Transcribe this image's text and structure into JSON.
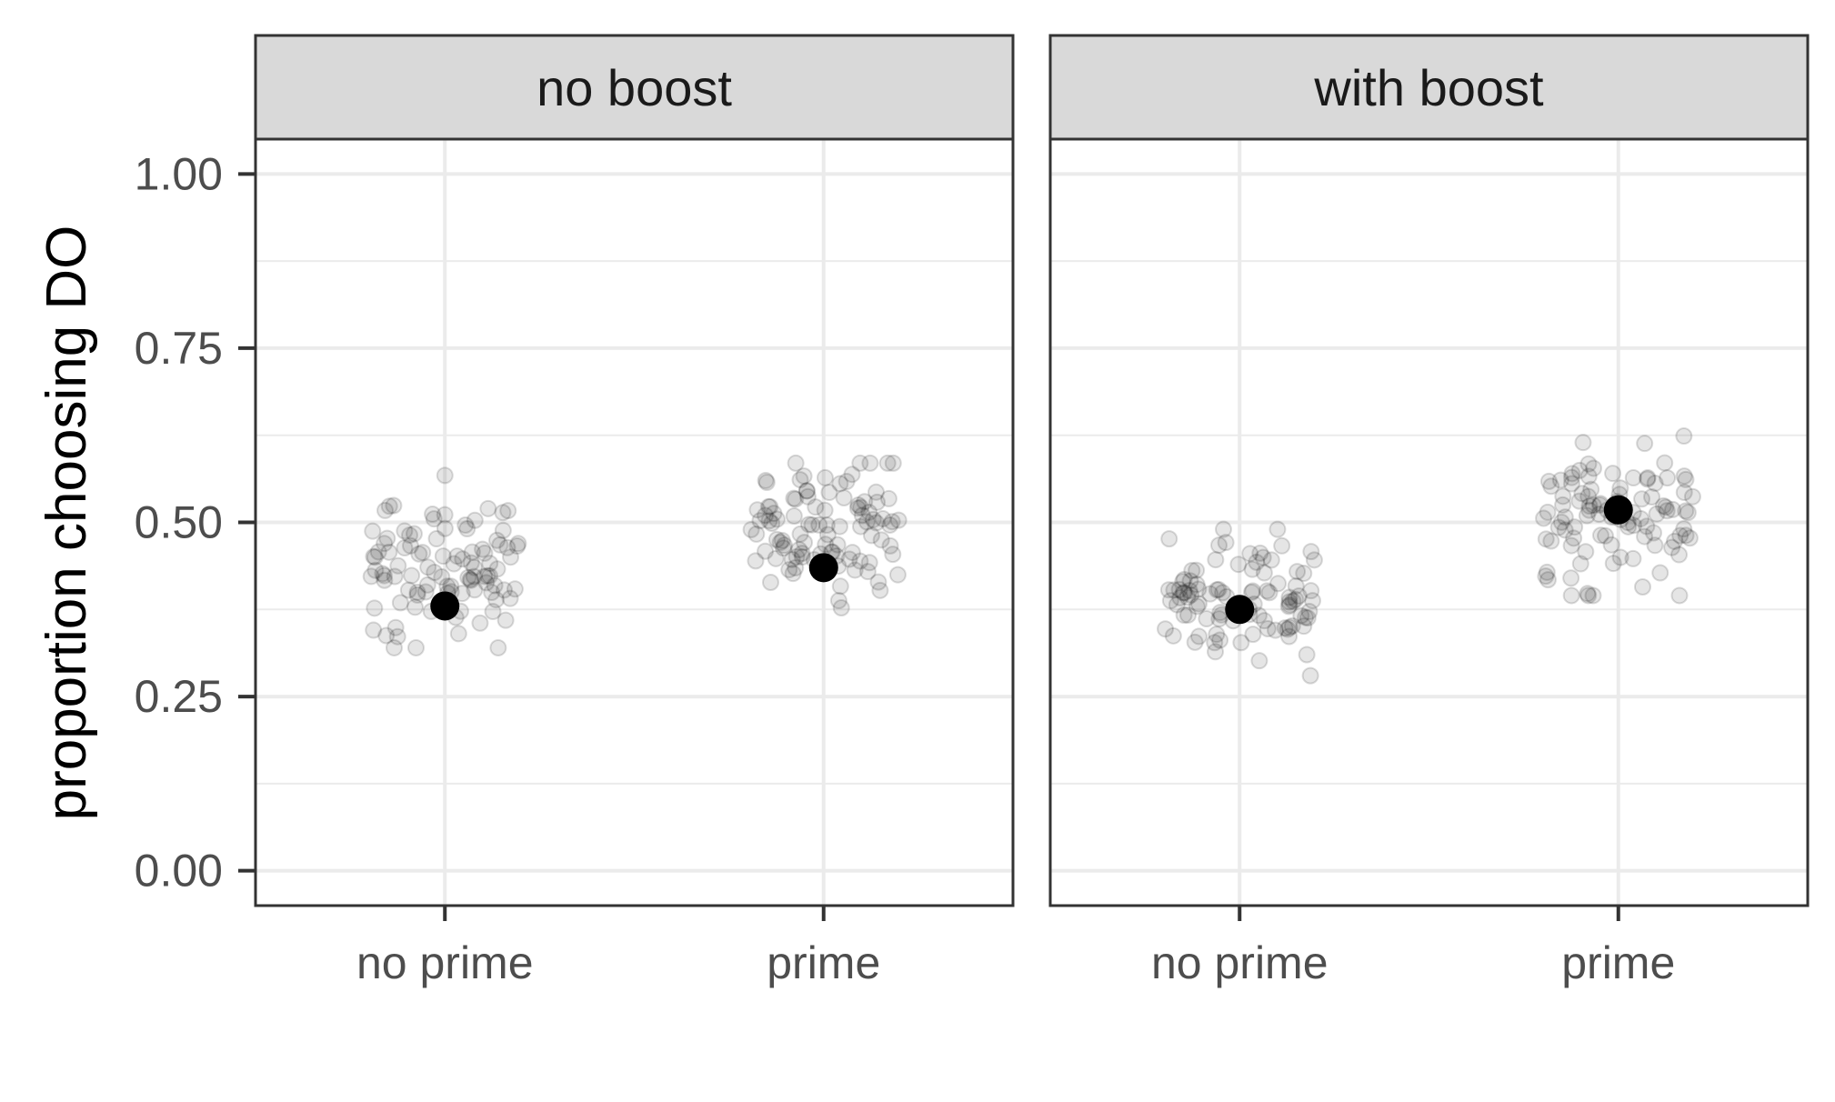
{
  "chart_data": {
    "type": "scatter",
    "title": "",
    "ylabel": "proportion choosing DO",
    "xlabel": "",
    "ylim": [
      -0.05,
      1.05
    ],
    "yticks": [
      "0.00",
      "0.25",
      "0.50",
      "0.75",
      "1.00"
    ],
    "grid": true,
    "colors": {
      "point": "#000000",
      "strip_fill": "#d9d9d9",
      "border": "#333333",
      "grid": "#ebebeb",
      "tick_text": "#4d4d4d"
    },
    "panels": [
      {
        "label": "no boost",
        "categories": [
          "no prime",
          "prime"
        ],
        "means": [
          0.38,
          0.435
        ],
        "jitter": [
          {
            "category": "no prime",
            "center": 0.43,
            "spread": 0.055,
            "min": 0.32,
            "max": 0.59,
            "count": 100
          },
          {
            "category": "prime",
            "center": 0.48,
            "spread": 0.05,
            "min": 0.355,
            "max": 0.585,
            "count": 100
          }
        ]
      },
      {
        "label": "with boost",
        "categories": [
          "no prime",
          "prime"
        ],
        "means": [
          0.375,
          0.518
        ],
        "jitter": [
          {
            "category": "no prime",
            "center": 0.39,
            "spread": 0.045,
            "min": 0.28,
            "max": 0.49,
            "count": 100
          },
          {
            "category": "prime",
            "center": 0.51,
            "spread": 0.05,
            "min": 0.395,
            "max": 0.635,
            "count": 100
          }
        ]
      }
    ]
  }
}
